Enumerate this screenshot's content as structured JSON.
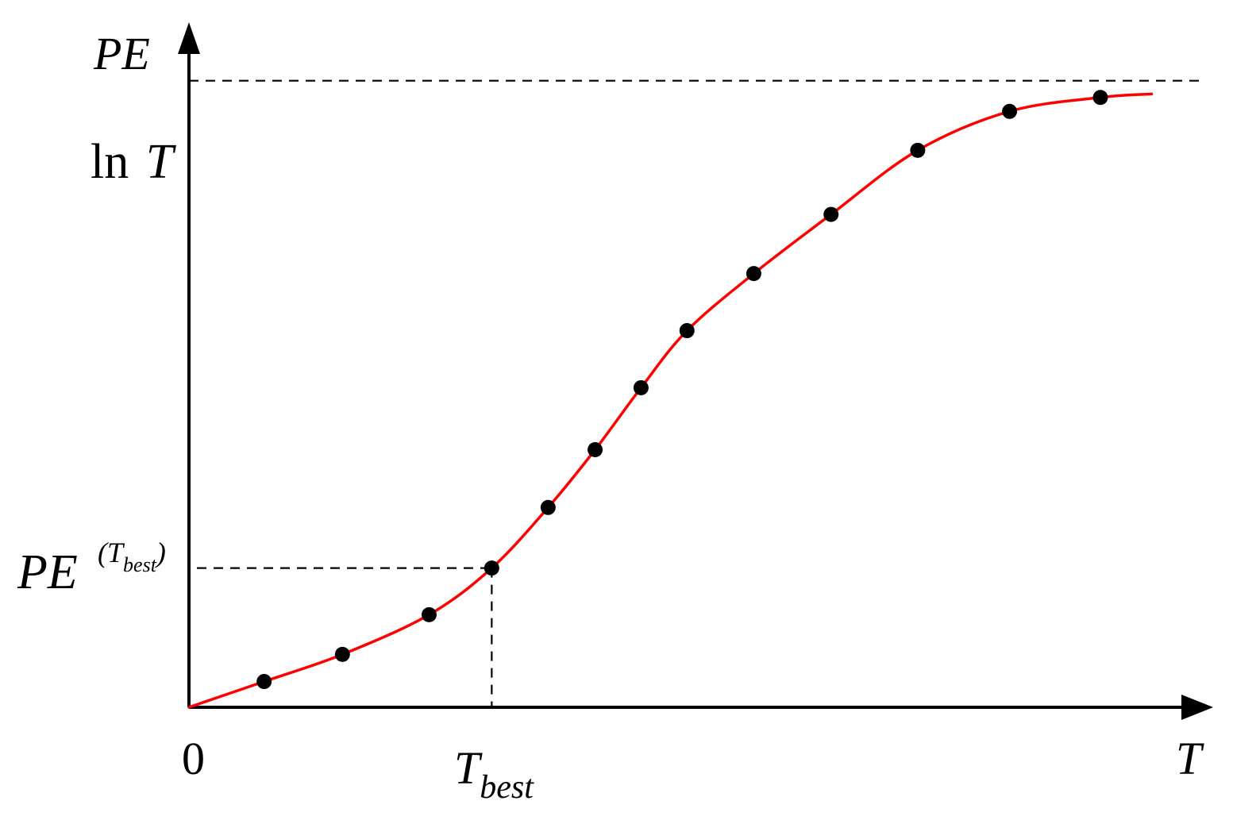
{
  "chart_data": {
    "type": "line",
    "title": "",
    "xlabel": "T",
    "ylabel": "PE",
    "origin_label": "0",
    "xlim": [
      0,
      1
    ],
    "ylim": [
      0,
      1
    ],
    "grid": false,
    "colors": {
      "curve": "#ff0000",
      "points": "#000000",
      "axes": "#000000",
      "guides": "#000000"
    },
    "y_reference": {
      "label_prefix": "ln",
      "label_var": "T",
      "value": 0.9
    },
    "x_marker": {
      "label_main": "T",
      "label_sub": "best",
      "x": 0.29
    },
    "y_marker": {
      "label_main": "PE",
      "label_sup_open": "(",
      "label_sup_var": "T",
      "label_sup_sub": "best",
      "label_sup_close": ")",
      "y": 0.2
    },
    "series": [
      {
        "kind": "curve",
        "x": [
          0,
          0.072,
          0.147,
          0.23,
          0.29,
          0.344,
          0.389,
          0.433,
          0.477,
          0.541,
          0.615,
          0.698,
          0.786,
          0.873,
          0.922
        ],
        "y": [
          0,
          0.037,
          0.076,
          0.133,
          0.2,
          0.287,
          0.37,
          0.459,
          0.541,
          0.623,
          0.708,
          0.8,
          0.856,
          0.876,
          0.881
        ]
      },
      {
        "kind": "points",
        "x": [
          0.072,
          0.147,
          0.23,
          0.29,
          0.344,
          0.389,
          0.433,
          0.477,
          0.541,
          0.615,
          0.698,
          0.786,
          0.873
        ],
        "y": [
          0.037,
          0.076,
          0.133,
          0.2,
          0.287,
          0.37,
          0.459,
          0.541,
          0.623,
          0.708,
          0.8,
          0.856,
          0.876
        ]
      }
    ]
  }
}
